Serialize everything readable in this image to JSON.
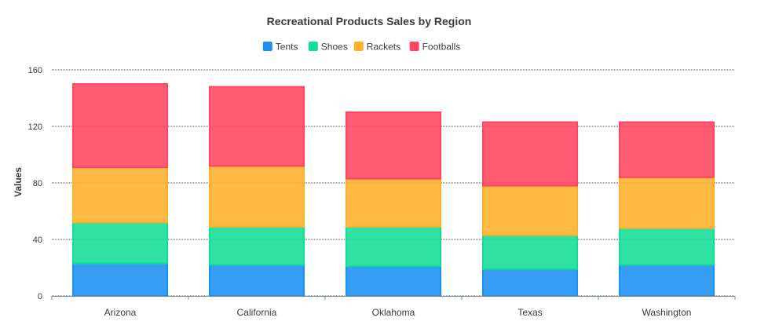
{
  "chart_data": {
    "type": "bar",
    "stacked": true,
    "title": "Recreational Products Sales by Region",
    "xlabel": "",
    "ylabel": "Values",
    "ylim": [
      0,
      160
    ],
    "yticks": [
      "0",
      "40",
      "80",
      "120",
      "160"
    ],
    "categories": [
      "Arizona",
      "California",
      "Oklahoma",
      "Texas",
      "Washington"
    ],
    "series": [
      {
        "name": "Tents",
        "color": "#1a90f4",
        "values": [
          23,
          22,
          21,
          19,
          22
        ]
      },
      {
        "name": "Shoes",
        "color": "#12dd96",
        "values": [
          29,
          27,
          28,
          24,
          26
        ]
      },
      {
        "name": "Rackets",
        "color": "#feb128",
        "values": [
          39,
          43,
          34,
          35,
          36
        ]
      },
      {
        "name": "Footballs",
        "color": "#ff4560",
        "values": [
          59,
          56,
          47,
          45,
          39
        ]
      }
    ],
    "legend_position": "top-center",
    "grid": true
  }
}
